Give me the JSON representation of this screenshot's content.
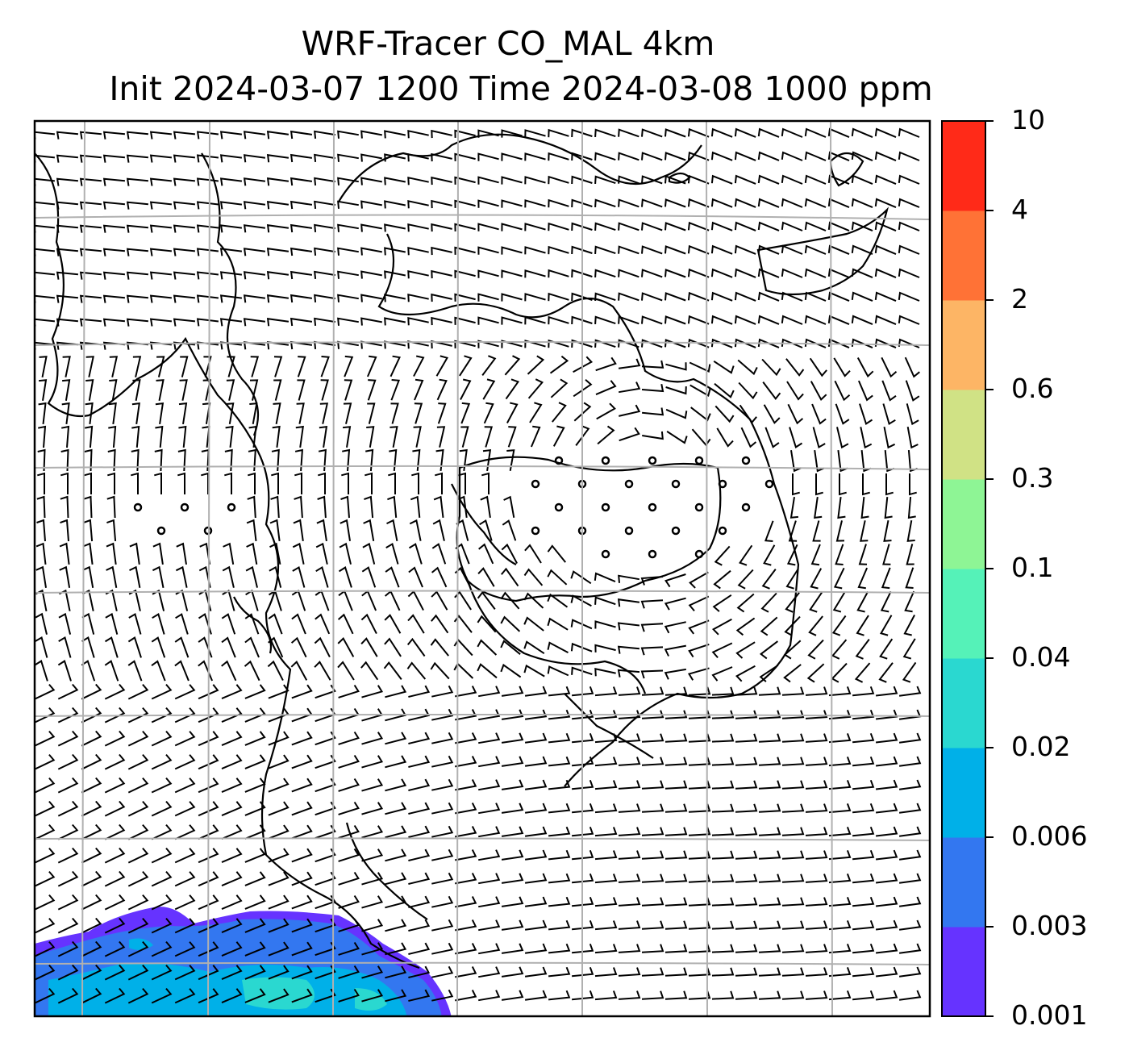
{
  "title": {
    "line1": "WRF-Tracer CO_MAL 4km",
    "line2": "Init 2024-03-07 1200 Time 2024-03-08 1000 ppm"
  },
  "colorbar": {
    "levels": [
      "0.001",
      "0.003",
      "0.006",
      "0.02",
      "0.04",
      "0.1",
      "0.3",
      "0.6",
      "2",
      "4",
      "10"
    ],
    "colors": [
      "#6633ff",
      "#3377f0",
      "#00b0e8",
      "#2ad8d0",
      "#55f2b8",
      "#8ef595",
      "#d0e285",
      "#fdb565",
      "#ff7236",
      "#ff2a18"
    ]
  },
  "map": {
    "field": "CO_MAL tracer concentration",
    "units": "ppm",
    "gridlines": true,
    "wind_barbs": true,
    "tracer_region": "bottom-left",
    "calm_region": "center"
  }
}
